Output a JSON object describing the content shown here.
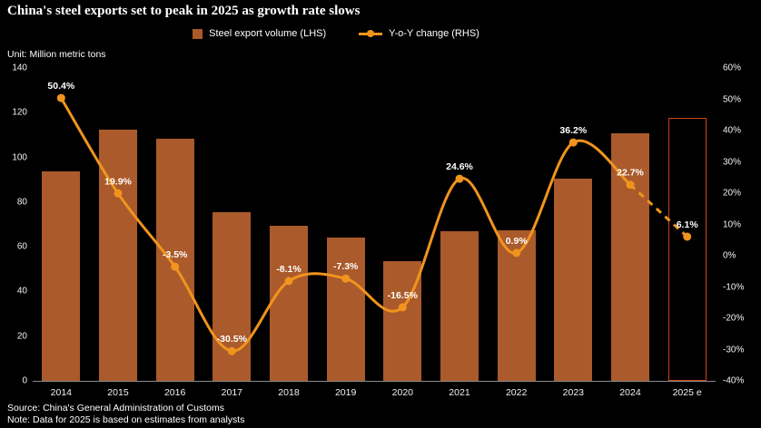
{
  "title": "China's steel exports set to peak in 2025 as growth rate slows",
  "unit_label": "Unit: Million metric tons",
  "source": "Source: China's General Administration of Customs",
  "note": "Note: Data for 2025 is based on estimates from analysts",
  "legend": [
    {
      "label": "Steel export volume (LHS)",
      "marker": "bar-swatch"
    },
    {
      "label": "Y-o-Y change (RHS)",
      "marker": "line-dot-swatch"
    }
  ],
  "colors": {
    "background": "#000000",
    "bar": "#AA5A2B",
    "bar_estimate_border": "#C9441F",
    "line": "#F0941E",
    "text": "#FFFFFF",
    "axis_line": "#8A8A8A"
  },
  "chart_data": {
    "type": "bar+line",
    "title": "China's steel exports set to peak in 2025 as growth rate slows",
    "categories": [
      "2014",
      "2015",
      "2016",
      "2017",
      "2018",
      "2019",
      "2020",
      "2021",
      "2022",
      "2023",
      "2024",
      "2025 e"
    ],
    "series": [
      {
        "name": "Steel export volume (LHS)",
        "type": "bar",
        "axis": "left",
        "unit": "million metric tons",
        "values": [
          93.8,
          112.4,
          108.4,
          75.4,
          69.3,
          64.3,
          53.7,
          66.9,
          67.3,
          90.3,
          110.7,
          117.5
        ],
        "last_is_estimate": true
      },
      {
        "name": "Y-o-Y change (RHS)",
        "type": "line",
        "axis": "right",
        "unit": "%",
        "values": [
          50.4,
          19.9,
          -3.5,
          -30.5,
          -8.1,
          -7.3,
          -16.5,
          24.6,
          0.9,
          36.2,
          22.7,
          6.1
        ],
        "point_labels": [
          "50.4%",
          "19.9%",
          "-3.5%",
          "-30.5%",
          "-8.1%",
          "-7.3%",
          "-16.5%",
          "24.6%",
          "0.9%",
          "36.2%",
          "22.7%",
          "6.1%"
        ],
        "dashed_last_segment": true
      }
    ],
    "left_axis": {
      "min": 0,
      "max": 140,
      "tick_labels": [
        "140",
        "120",
        "100",
        "80",
        "60",
        "40",
        "20",
        "0"
      ]
    },
    "right_axis": {
      "min": -40,
      "max": 60,
      "tick_labels": [
        "60%",
        "50%",
        "40%",
        "30%",
        "20%",
        "10%",
        "0%",
        "-10%",
        "-20%",
        "-30%",
        "-40%"
      ]
    },
    "grid": false,
    "legend_position": "top-center",
    "background": "black"
  }
}
